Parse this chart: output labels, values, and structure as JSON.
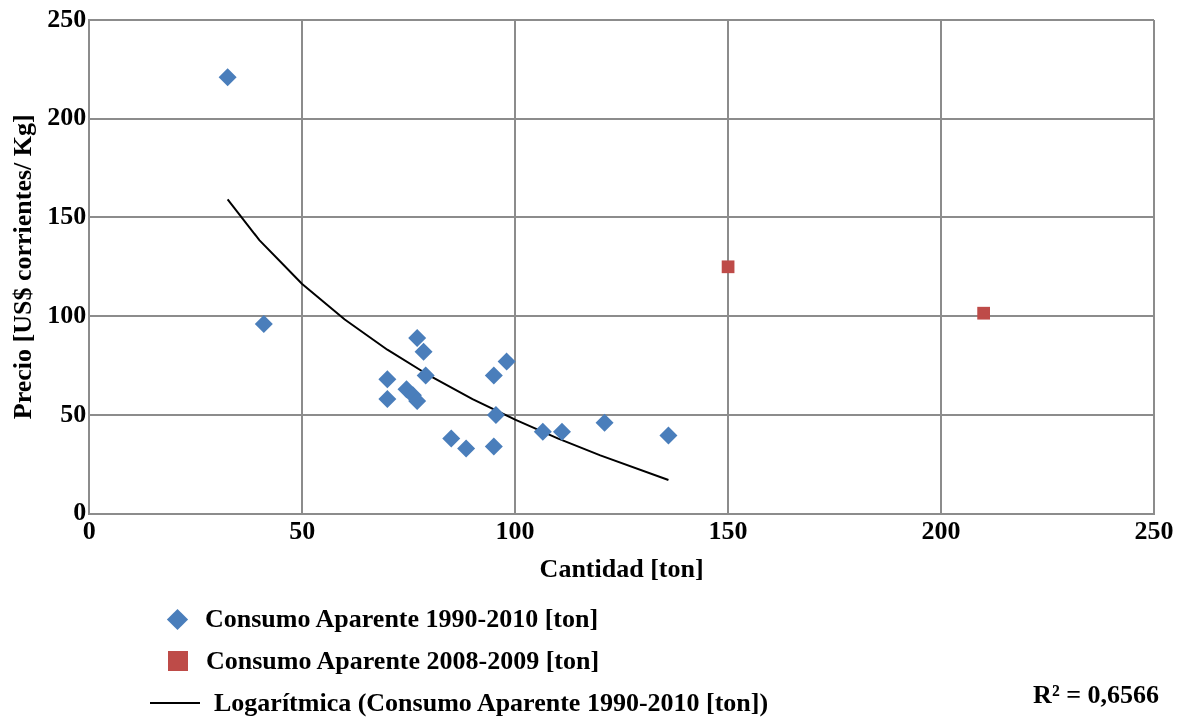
{
  "chart_data": {
    "type": "scatter",
    "xlabel": "Cantidad [ton]",
    "ylabel": "Precio [US$ corrientes/ Kg]",
    "xlim": [
      0,
      250
    ],
    "xticks": [
      0,
      50,
      100,
      150,
      200,
      250
    ],
    "ylim": [
      0,
      250
    ],
    "yticks": [
      0,
      50,
      100,
      150,
      200,
      250
    ],
    "grid": true,
    "legend": "bottom",
    "series": [
      {
        "name": "Consumo Aparente 1990-2010 [ton]",
        "color": "#4a7ebb",
        "marker": "diamond",
        "x": [
          32.5,
          41,
          70,
          70,
          74.5,
          76,
          77,
          77,
          78.5,
          79,
          85,
          88.5,
          95,
          95,
          95.5,
          98,
          106.5,
          111,
          121,
          136
        ],
        "values": [
          221,
          96,
          68,
          58,
          63,
          60,
          57,
          89,
          82,
          70,
          38,
          33,
          70,
          34,
          50,
          77,
          41.5,
          41.5,
          46,
          39.5
        ]
      },
      {
        "name": "Consumo Aparente 2008-2009 [ton]",
        "color": "#be4b48",
        "marker": "square",
        "x": [
          150,
          210
        ],
        "values": [
          125,
          101.5
        ]
      },
      {
        "name": "Logarítmica (Consumo Aparente 1990-2010 [ton])",
        "type": "line",
        "color": "#000000",
        "marker": "none",
        "x": [
          32.5,
          40,
          50,
          60,
          70,
          80,
          90,
          100,
          110,
          120,
          136
        ],
        "values": [
          159.1,
          138.4,
          116.3,
          98.3,
          83.0,
          69.7,
          58.0,
          47.6,
          38.1,
          29.5,
          17.0
        ]
      }
    ],
    "annotations": [
      "R² = 0,6566"
    ]
  }
}
